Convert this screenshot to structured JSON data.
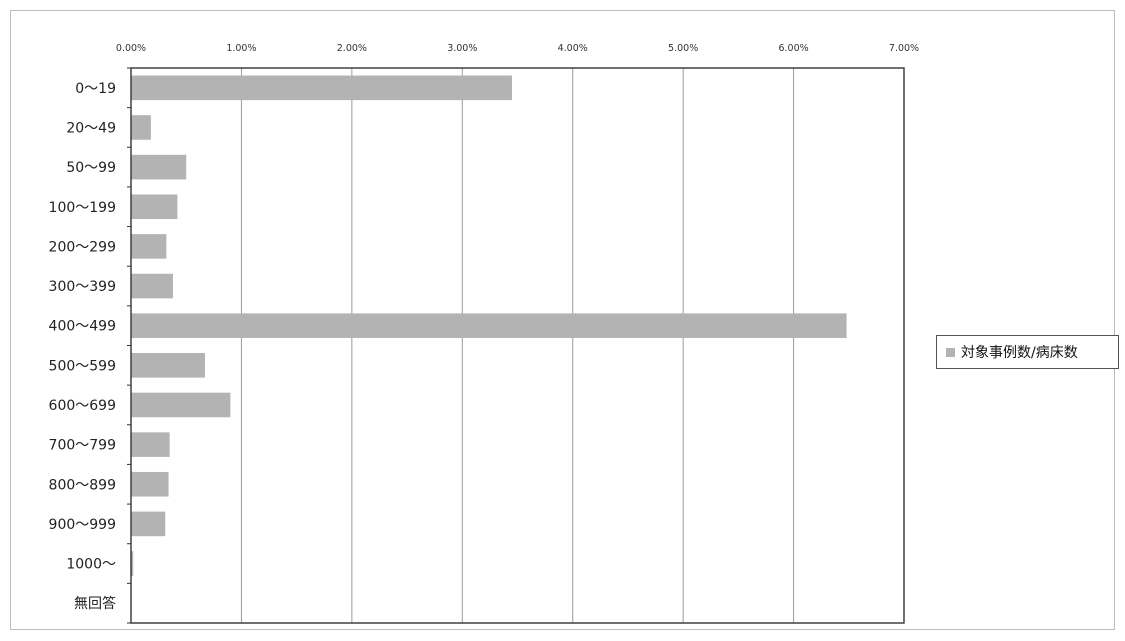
{
  "chart_data": {
    "type": "bar",
    "orientation": "horizontal",
    "categories": [
      "0〜19",
      "20〜49",
      "50〜99",
      "100〜199",
      "200〜299",
      "300〜399",
      "400〜499",
      "500〜599",
      "600〜699",
      "700〜799",
      "800〜899",
      "900〜999",
      "1000〜",
      "無回答"
    ],
    "series": [
      {
        "name": "対象事例数/病床数",
        "color": "#b3b3b3",
        "values": [
          3.45,
          0.18,
          0.5,
          0.42,
          0.32,
          0.38,
          6.48,
          0.67,
          0.9,
          0.35,
          0.34,
          0.31,
          0.02,
          0
        ]
      }
    ],
    "x_ticks": [
      "0.00%",
      "1.00%",
      "2.00%",
      "3.00%",
      "4.00%",
      "5.00%",
      "6.00%",
      "7.00%"
    ],
    "xlim": [
      0,
      7
    ],
    "value_unit": "%",
    "x_axis_position": "top",
    "grid": "vertical",
    "legend_position": "right"
  }
}
